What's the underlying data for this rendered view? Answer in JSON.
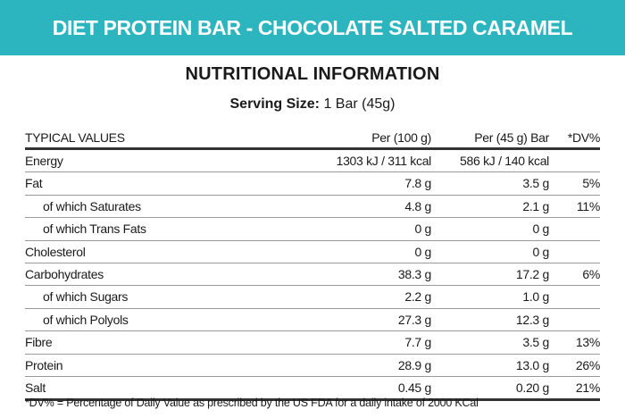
{
  "banner": {
    "title": "DIET PROTEIN BAR - CHOCOLATE SALTED CARAMEL",
    "color": "#2cb5bf"
  },
  "heading": "NUTRITIONAL INFORMATION",
  "serving": {
    "label": "Serving Size:",
    "value": "1 Bar (45g)"
  },
  "table": {
    "headers": [
      "TYPICAL VALUES",
      "Per (100 g)",
      "Per (45 g) Bar",
      "*DV%"
    ],
    "rows": [
      {
        "name": "Energy",
        "per100": "1303 kJ / 311 kcal",
        "perBar": "586 kJ / 140 kcal",
        "dv": "",
        "indent": false
      },
      {
        "name": "Fat",
        "per100": "7.8 g",
        "perBar": "3.5 g",
        "dv": "5%",
        "indent": false
      },
      {
        "name": "of which Saturates",
        "per100": "4.8 g",
        "perBar": "2.1 g",
        "dv": "11%",
        "indent": true
      },
      {
        "name": "of which Trans Fats",
        "per100": "0 g",
        "perBar": "0 g",
        "dv": "",
        "indent": true
      },
      {
        "name": "Cholesterol",
        "per100": "0 g",
        "perBar": "0 g",
        "dv": "",
        "indent": false
      },
      {
        "name": "Carbohydrates",
        "per100": "38.3 g",
        "perBar": "17.2 g",
        "dv": "6%",
        "indent": false
      },
      {
        "name": "of which Sugars",
        "per100": "2.2 g",
        "perBar": "1.0 g",
        "dv": "",
        "indent": true
      },
      {
        "name": "of which Polyols",
        "per100": "27.3 g",
        "perBar": "12.3 g",
        "dv": "",
        "indent": true
      },
      {
        "name": "Fibre",
        "per100": "7.7 g",
        "perBar": "3.5 g",
        "dv": "13%",
        "indent": false
      },
      {
        "name": "Protein",
        "per100": "28.9 g",
        "perBar": "13.0 g",
        "dv": "26%",
        "indent": false
      },
      {
        "name": "Salt",
        "per100": "0.45 g",
        "perBar": "0.20 g",
        "dv": "21%",
        "indent": false
      }
    ]
  },
  "footnote": "*DV% = Percentage of Daily Value as prescribed by the US FDA for a daily intake of 2000 KCal"
}
